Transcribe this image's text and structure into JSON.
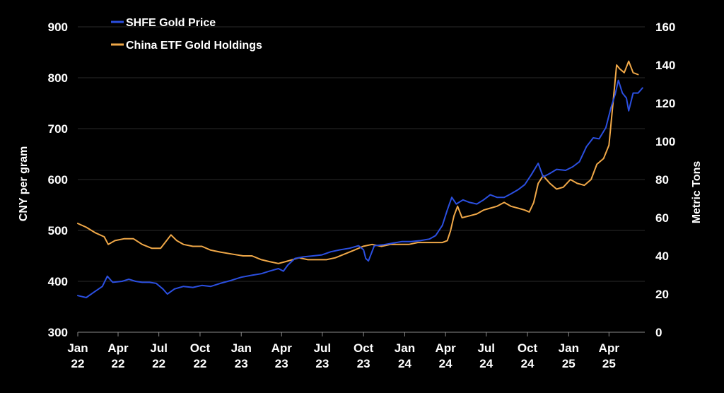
{
  "chart_data": {
    "type": "line",
    "title": "",
    "xlabel": "",
    "ylabel_left": "CNY per gram",
    "ylabel_right": "Metric Tons",
    "y_left_range": [
      300,
      900
    ],
    "y_left_ticks": [
      "300",
      "400",
      "500",
      "600",
      "700",
      "800",
      "900"
    ],
    "y_right_range": [
      0,
      160
    ],
    "y_right_ticks": [
      "0",
      "20",
      "40",
      "60",
      "80",
      "100",
      "120",
      "140",
      "160"
    ],
    "x_ticks": [
      {
        "month": "Jan",
        "year": "22",
        "date": "2022-01"
      },
      {
        "month": "Apr",
        "year": "22",
        "date": "2022-04"
      },
      {
        "month": "Jul",
        "year": "22",
        "date": "2022-07"
      },
      {
        "month": "Oct",
        "year": "22",
        "date": "2022-10"
      },
      {
        "month": "Jan",
        "year": "23",
        "date": "2023-01"
      },
      {
        "month": "Apr",
        "year": "23",
        "date": "2023-04"
      },
      {
        "month": "Jul",
        "year": "23",
        "date": "2023-07"
      },
      {
        "month": "Oct",
        "year": "23",
        "date": "2023-10"
      },
      {
        "month": "Jan",
        "year": "24",
        "date": "2024-01"
      },
      {
        "month": "Apr",
        "year": "24",
        "date": "2024-04"
      },
      {
        "month": "Jul",
        "year": "24",
        "date": "2024-07"
      },
      {
        "month": "Oct",
        "year": "24",
        "date": "2024-10"
      },
      {
        "month": "Jan",
        "year": "25",
        "date": "2025-01"
      },
      {
        "month": "Apr",
        "year": "25",
        "date": "2025-04"
      }
    ],
    "grid": "horizontal",
    "legend_position": "top-left",
    "series": [
      {
        "name": "SHFE Gold Price",
        "axis": "left",
        "color": "#2b4fe0",
        "points": [
          [
            "2022-01-01",
            372
          ],
          [
            "2022-01-20",
            368
          ],
          [
            "2022-02-05",
            378
          ],
          [
            "2022-02-25",
            390
          ],
          [
            "2022-03-08",
            410
          ],
          [
            "2022-03-20",
            398
          ],
          [
            "2022-04-10",
            400
          ],
          [
            "2022-04-25",
            404
          ],
          [
            "2022-05-10",
            400
          ],
          [
            "2022-05-25",
            398
          ],
          [
            "2022-06-10",
            398
          ],
          [
            "2022-06-25",
            396
          ],
          [
            "2022-07-10",
            385
          ],
          [
            "2022-07-20",
            375
          ],
          [
            "2022-08-05",
            385
          ],
          [
            "2022-08-25",
            390
          ],
          [
            "2022-09-15",
            388
          ],
          [
            "2022-10-05",
            392
          ],
          [
            "2022-10-25",
            390
          ],
          [
            "2022-11-15",
            396
          ],
          [
            "2022-12-10",
            402
          ],
          [
            "2023-01-01",
            408
          ],
          [
            "2023-01-25",
            412
          ],
          [
            "2023-02-15",
            415
          ],
          [
            "2023-03-05",
            420
          ],
          [
            "2023-03-25",
            425
          ],
          [
            "2023-04-05",
            420
          ],
          [
            "2023-04-15",
            432
          ],
          [
            "2023-05-01",
            445
          ],
          [
            "2023-05-20",
            448
          ],
          [
            "2023-06-10",
            450
          ],
          [
            "2023-06-30",
            452
          ],
          [
            "2023-07-20",
            458
          ],
          [
            "2023-08-10",
            462
          ],
          [
            "2023-08-31",
            465
          ],
          [
            "2023-09-20",
            470
          ],
          [
            "2023-10-01",
            462
          ],
          [
            "2023-10-06",
            445
          ],
          [
            "2023-10-12",
            440
          ],
          [
            "2023-10-25",
            470
          ],
          [
            "2023-11-15",
            472
          ],
          [
            "2023-12-05",
            475
          ],
          [
            "2023-12-25",
            478
          ],
          [
            "2024-01-15",
            478
          ],
          [
            "2024-02-05",
            480
          ],
          [
            "2024-02-25",
            483
          ],
          [
            "2024-03-10",
            490
          ],
          [
            "2024-03-25",
            510
          ],
          [
            "2024-04-05",
            540
          ],
          [
            "2024-04-15",
            565
          ],
          [
            "2024-04-25",
            552
          ],
          [
            "2024-05-10",
            560
          ],
          [
            "2024-05-25",
            555
          ],
          [
            "2024-06-10",
            552
          ],
          [
            "2024-06-25",
            560
          ],
          [
            "2024-07-10",
            570
          ],
          [
            "2024-07-25",
            565
          ],
          [
            "2024-08-10",
            565
          ],
          [
            "2024-08-25",
            572
          ],
          [
            "2024-09-10",
            580
          ],
          [
            "2024-09-25",
            590
          ],
          [
            "2024-10-10",
            610
          ],
          [
            "2024-10-25",
            632
          ],
          [
            "2024-11-05",
            605
          ],
          [
            "2024-11-20",
            612
          ],
          [
            "2024-12-05",
            620
          ],
          [
            "2024-12-25",
            618
          ],
          [
            "2025-01-10",
            625
          ],
          [
            "2025-01-25",
            635
          ],
          [
            "2025-02-10",
            665
          ],
          [
            "2025-02-25",
            682
          ],
          [
            "2025-03-10",
            680
          ],
          [
            "2025-03-25",
            702
          ],
          [
            "2025-04-05",
            740
          ],
          [
            "2025-04-15",
            768
          ],
          [
            "2025-04-22",
            795
          ],
          [
            "2025-05-01",
            770
          ],
          [
            "2025-05-10",
            760
          ],
          [
            "2025-05-15",
            735
          ],
          [
            "2025-05-25",
            770
          ],
          [
            "2025-06-05",
            770
          ],
          [
            "2025-06-15",
            780
          ]
        ]
      },
      {
        "name": "China ETF Gold Holdings",
        "axis": "right",
        "color": "#f0a848",
        "points": [
          [
            "2022-01-01",
            57
          ],
          [
            "2022-01-20",
            55
          ],
          [
            "2022-02-10",
            52
          ],
          [
            "2022-03-01",
            50
          ],
          [
            "2022-03-10",
            46
          ],
          [
            "2022-03-25",
            48
          ],
          [
            "2022-04-15",
            49
          ],
          [
            "2022-05-05",
            49
          ],
          [
            "2022-05-25",
            46
          ],
          [
            "2022-06-15",
            44
          ],
          [
            "2022-07-05",
            44
          ],
          [
            "2022-07-15",
            47
          ],
          [
            "2022-07-28",
            51
          ],
          [
            "2022-08-10",
            48
          ],
          [
            "2022-08-25",
            46
          ],
          [
            "2022-09-15",
            45
          ],
          [
            "2022-10-05",
            45
          ],
          [
            "2022-10-25",
            43
          ],
          [
            "2022-11-15",
            42
          ],
          [
            "2022-12-10",
            41
          ],
          [
            "2023-01-05",
            40
          ],
          [
            "2023-01-25",
            40
          ],
          [
            "2023-02-15",
            38
          ],
          [
            "2023-03-05",
            37
          ],
          [
            "2023-03-25",
            36
          ],
          [
            "2023-04-10",
            37
          ],
          [
            "2023-04-25",
            38
          ],
          [
            "2023-05-10",
            39
          ],
          [
            "2023-05-30",
            38
          ],
          [
            "2023-06-20",
            38
          ],
          [
            "2023-07-10",
            38
          ],
          [
            "2023-07-30",
            39
          ],
          [
            "2023-08-20",
            41
          ],
          [
            "2023-09-10",
            43
          ],
          [
            "2023-09-30",
            45
          ],
          [
            "2023-10-20",
            46
          ],
          [
            "2023-11-10",
            45
          ],
          [
            "2023-11-30",
            46
          ],
          [
            "2023-12-20",
            46
          ],
          [
            "2024-01-10",
            46
          ],
          [
            "2024-01-30",
            47
          ],
          [
            "2024-02-20",
            47
          ],
          [
            "2024-03-10",
            47
          ],
          [
            "2024-03-25",
            47
          ],
          [
            "2024-04-05",
            48
          ],
          [
            "2024-04-12",
            53
          ],
          [
            "2024-04-20",
            61
          ],
          [
            "2024-04-28",
            66
          ],
          [
            "2024-05-08",
            60
          ],
          [
            "2024-05-25",
            61
          ],
          [
            "2024-06-10",
            62
          ],
          [
            "2024-06-25",
            64
          ],
          [
            "2024-07-10",
            65
          ],
          [
            "2024-07-25",
            66
          ],
          [
            "2024-08-10",
            68
          ],
          [
            "2024-08-25",
            66
          ],
          [
            "2024-09-10",
            65
          ],
          [
            "2024-09-25",
            64
          ],
          [
            "2024-10-05",
            63
          ],
          [
            "2024-10-15",
            68
          ],
          [
            "2024-10-25",
            78
          ],
          [
            "2024-11-05",
            82
          ],
          [
            "2024-11-20",
            78
          ],
          [
            "2024-12-05",
            75
          ],
          [
            "2024-12-20",
            76
          ],
          [
            "2025-01-05",
            80
          ],
          [
            "2025-01-20",
            78
          ],
          [
            "2025-02-05",
            77
          ],
          [
            "2025-02-20",
            80
          ],
          [
            "2025-03-05",
            88
          ],
          [
            "2025-03-20",
            91
          ],
          [
            "2025-04-01",
            98
          ],
          [
            "2025-04-10",
            120
          ],
          [
            "2025-04-18",
            140
          ],
          [
            "2025-04-25",
            138
          ],
          [
            "2025-05-05",
            136
          ],
          [
            "2025-05-15",
            142
          ],
          [
            "2025-05-25",
            136
          ],
          [
            "2025-06-05",
            135
          ]
        ]
      }
    ]
  }
}
